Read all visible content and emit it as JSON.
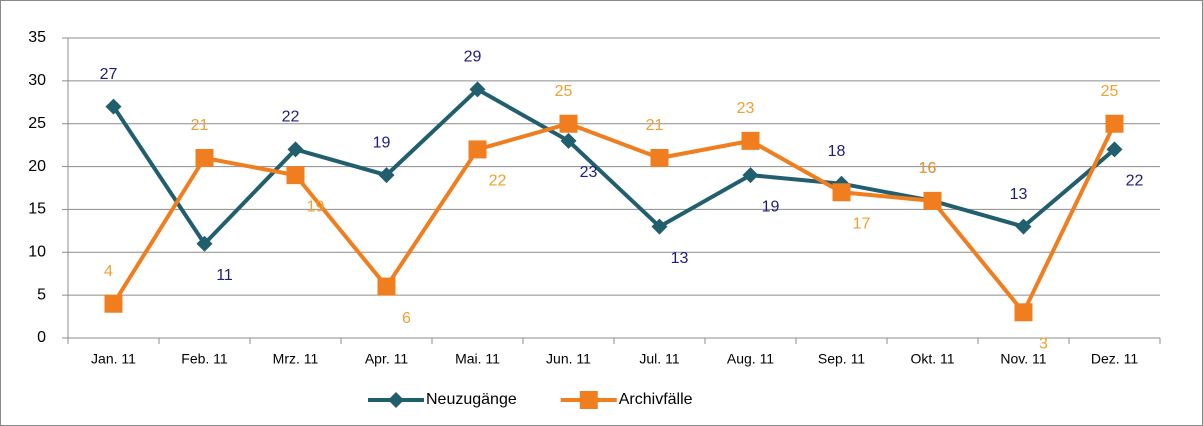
{
  "chart_data": {
    "type": "line",
    "categories": [
      "Jan. 11",
      "Feb. 11",
      "Mrz. 11",
      "Apr. 11",
      "Mai. 11",
      "Jun. 11",
      "Jul. 11",
      "Aug. 11",
      "Sep. 11",
      "Okt. 11",
      "Nov. 11",
      "Dez. 11"
    ],
    "series": [
      {
        "name": "Neuzugänge",
        "color": "#215e6e",
        "label_color": "#1c1c80",
        "marker": "diamond",
        "values": [
          27,
          11,
          22,
          19,
          29,
          23,
          13,
          19,
          18,
          16,
          13,
          22
        ]
      },
      {
        "name": "Archivfälle",
        "color": "#f07d1e",
        "label_color": "#f0a030",
        "marker": "square",
        "values": [
          4,
          21,
          19,
          6,
          22,
          25,
          21,
          23,
          17,
          16,
          3,
          25
        ]
      }
    ],
    "ylim": [
      0,
      35
    ],
    "yticks": [
      0,
      5,
      10,
      15,
      20,
      25,
      30,
      35
    ],
    "grid": true,
    "legend": "bottom"
  }
}
